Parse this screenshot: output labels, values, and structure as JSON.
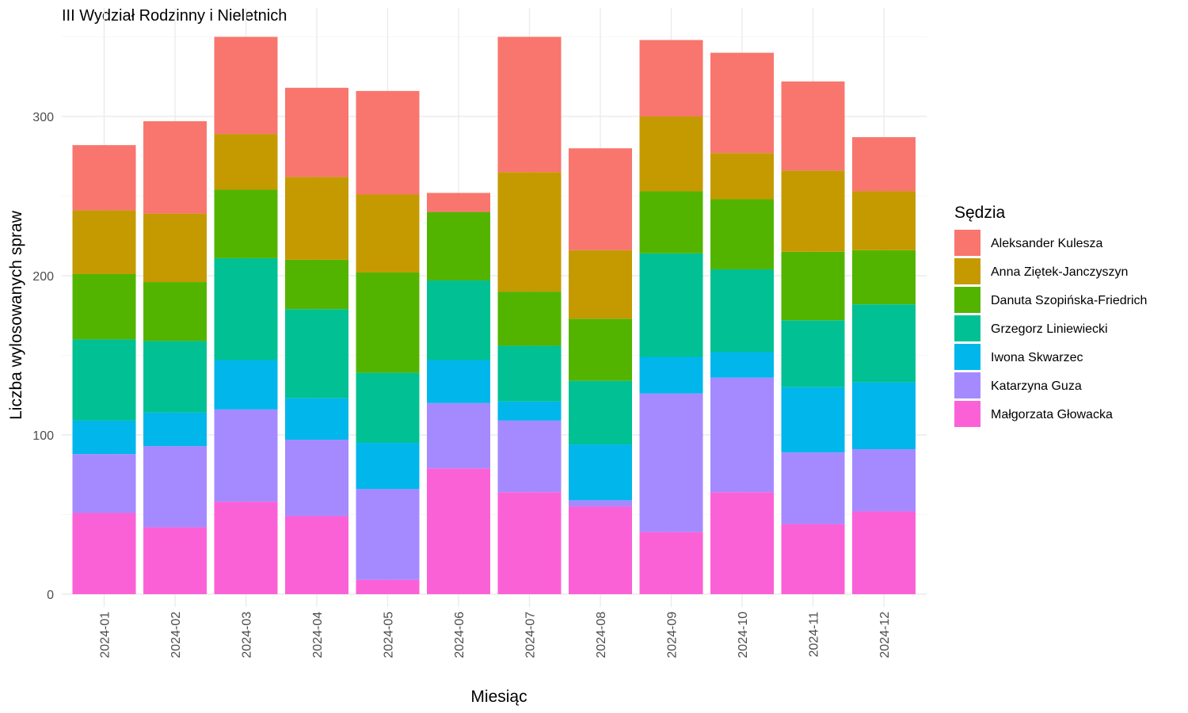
{
  "chart_data": {
    "type": "bar",
    "stacked": true,
    "title": "III Wydział Rodzinny i Nieletnich",
    "xlabel": "Miesiąc",
    "ylabel": "Liczba wylosowanych spraw",
    "ylim": [
      0,
      350
    ],
    "yticks": [
      0,
      100,
      200,
      300
    ],
    "yticks_labels": [
      "0",
      "100",
      "200",
      "300"
    ],
    "grid": true,
    "legend_position": "right",
    "legend_title": "Sędzia",
    "categories": [
      "2024-01",
      "2024-02",
      "2024-03",
      "2024-04",
      "2024-05",
      "2024-06",
      "2024-07",
      "2024-08",
      "2024-09",
      "2024-10",
      "2024-11",
      "2024-12"
    ],
    "series": [
      {
        "name": "Małgorzata Głowacka",
        "color": "#FB61D7",
        "values": [
          51,
          42,
          58,
          49,
          9,
          79,
          64,
          55,
          39,
          64,
          44,
          52
        ]
      },
      {
        "name": "Katarzyna Guza",
        "color": "#A58AFF",
        "values": [
          37,
          51,
          58,
          48,
          57,
          41,
          45,
          4,
          87,
          72,
          45,
          39
        ]
      },
      {
        "name": "Iwona Skwarzec",
        "color": "#00B6EB",
        "values": [
          21,
          21,
          31,
          26,
          29,
          27,
          12,
          35,
          23,
          16,
          41,
          42
        ]
      },
      {
        "name": "Grzegorz Liniewiecki",
        "color": "#00C094",
        "values": [
          51,
          45,
          64,
          56,
          44,
          50,
          35,
          40,
          65,
          52,
          42,
          49
        ]
      },
      {
        "name": "Danuta Szopińska-Friedrich",
        "color": "#53B400",
        "values": [
          41,
          37,
          43,
          31,
          63,
          43,
          34,
          39,
          39,
          44,
          43,
          34
        ]
      },
      {
        "name": "Anna Ziętek-Janczyszyn",
        "color": "#C49A00",
        "values": [
          40,
          43,
          35,
          52,
          49,
          0,
          75,
          43,
          47,
          29,
          51,
          37
        ]
      },
      {
        "name": "Aleksander Kulesza",
        "color": "#F8766D",
        "values": [
          41,
          58,
          61,
          56,
          65,
          12,
          85,
          64,
          48,
          63,
          56,
          34
        ]
      }
    ],
    "legend_order": [
      "Aleksander Kulesza",
      "Anna Ziętek-Janczyszyn",
      "Danuta Szopińska-Friedrich",
      "Grzegorz Liniewiecki",
      "Iwona Skwarzec",
      "Katarzyna Guza",
      "Małgorzata Głowacka"
    ]
  }
}
